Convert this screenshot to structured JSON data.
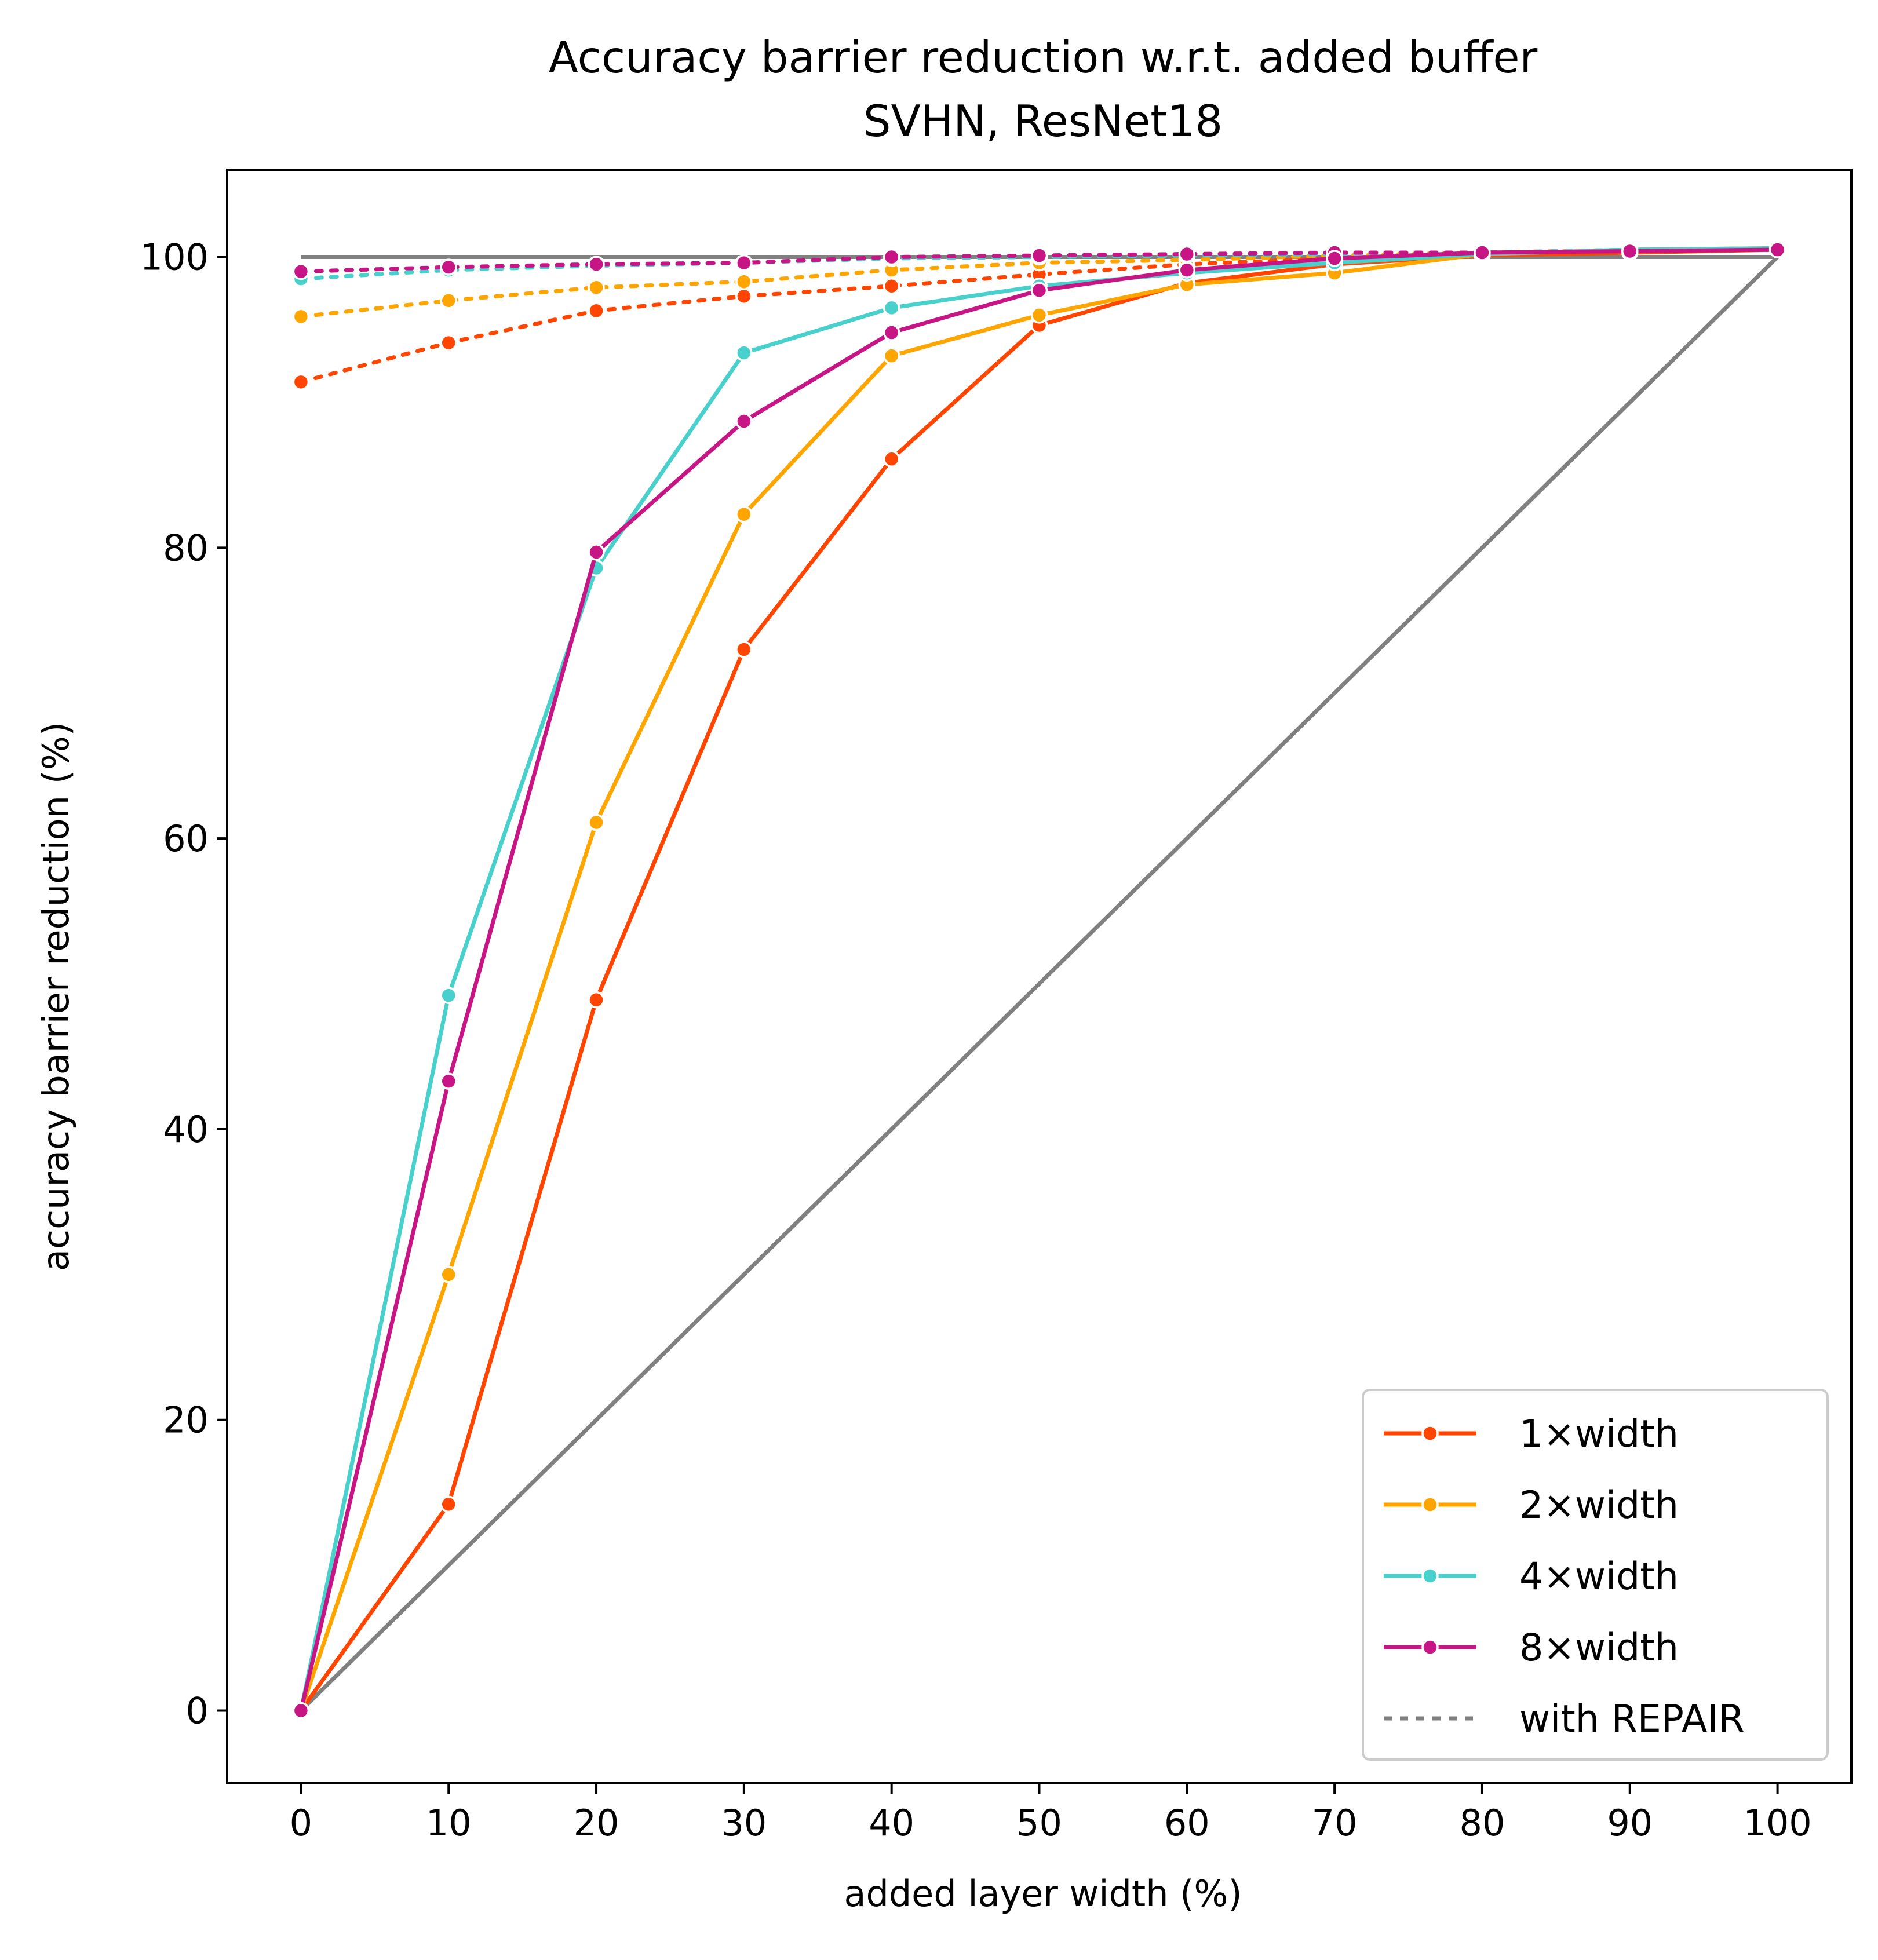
{
  "chart_data": {
    "type": "line",
    "title": "Accuracy barrier reduction w.r.t. added buffer",
    "subtitle": "SVHN, ResNet18",
    "xlabel": "added layer width (%)",
    "ylabel": "accuracy barrier reduction (%)",
    "xlim": [
      -5,
      105
    ],
    "ylim": [
      -5,
      106
    ],
    "xticks": [
      0,
      10,
      20,
      30,
      40,
      50,
      60,
      70,
      80,
      90,
      100
    ],
    "yticks": [
      0,
      20,
      40,
      60,
      80,
      100
    ],
    "grid": false,
    "legend_position": "lower-right",
    "x": [
      0,
      10,
      20,
      30,
      40,
      50,
      60,
      70,
      80,
      90,
      100
    ],
    "reference_lines": [
      {
        "x": [
          0,
          100
        ],
        "y": [
          100,
          100
        ],
        "color": "#808080"
      },
      {
        "x": [
          0,
          100
        ],
        "y": [
          0,
          100
        ],
        "color": "#808080"
      }
    ],
    "series": [
      {
        "name": "1×width",
        "color": "#FF4500",
        "style": "solid",
        "values": [
          0,
          14.2,
          48.9,
          73.0,
          86.1,
          95.3,
          98.2,
          99.5,
          100.1,
          100.3,
          100.5
        ]
      },
      {
        "name": "2×width",
        "color": "#FFA500",
        "style": "solid",
        "values": [
          0,
          30.0,
          61.1,
          82.3,
          93.2,
          96.0,
          98.1,
          98.9,
          100.2,
          100.5,
          100.6
        ]
      },
      {
        "name": "4×width",
        "color": "#48D1CC",
        "style": "solid",
        "values": [
          0,
          49.2,
          78.6,
          93.4,
          96.5,
          98.0,
          98.9,
          99.6,
          100.2,
          100.5,
          100.6
        ]
      },
      {
        "name": "8×width",
        "color": "#C71585",
        "style": "solid",
        "values": [
          0,
          43.3,
          79.7,
          88.7,
          94.8,
          97.7,
          99.1,
          99.9,
          100.3,
          100.4,
          100.5
        ]
      },
      {
        "color": "#FF4500",
        "style": "dotted",
        "values": [
          91.4,
          94.1,
          96.3,
          97.3,
          98.0,
          98.8,
          99.5,
          99.9,
          100.2,
          100.4,
          100.5
        ]
      },
      {
        "color": "#FFA500",
        "style": "dotted",
        "values": [
          95.9,
          97.0,
          97.9,
          98.3,
          99.1,
          99.6,
          99.8,
          100.1,
          100.3,
          100.5,
          100.6
        ]
      },
      {
        "color": "#48D1CC",
        "style": "dotted",
        "values": [
          98.5,
          99.1,
          99.4,
          99.6,
          99.9,
          100.0,
          100.1,
          100.2,
          100.3,
          100.5,
          100.6
        ]
      },
      {
        "color": "#C71585",
        "style": "dotted",
        "values": [
          99.0,
          99.3,
          99.5,
          99.6,
          100.0,
          100.1,
          100.2,
          100.3,
          100.3,
          100.4,
          100.5
        ]
      }
    ],
    "legend": [
      {
        "label": "1×width",
        "color": "#FF4500",
        "style": "solid",
        "marker": true
      },
      {
        "label": "2×width",
        "color": "#FFA500",
        "style": "solid",
        "marker": true
      },
      {
        "label": "4×width",
        "color": "#48D1CC",
        "style": "solid",
        "marker": true
      },
      {
        "label": "8×width",
        "color": "#C71585",
        "style": "solid",
        "marker": true
      },
      {
        "label": "with REPAIR",
        "color": "#808080",
        "style": "dotted",
        "marker": false
      }
    ]
  }
}
